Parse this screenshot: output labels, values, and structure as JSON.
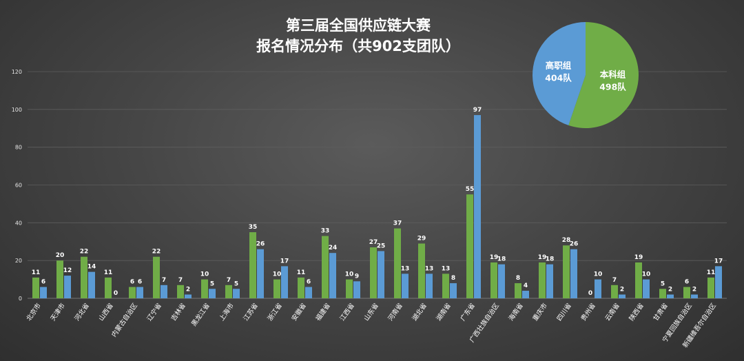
{
  "chart_data": [
    {
      "type": "bar",
      "title": [
        "第三届全国供应链大赛",
        "报名情况分布（共902支团队）"
      ],
      "categories": [
        "北京市",
        "天津市",
        "河北省",
        "山西省",
        "内蒙古自治区",
        "辽宁省",
        "吉林省",
        "黑龙江省",
        "上海市",
        "江苏省",
        "浙江省",
        "安徽省",
        "福建省",
        "江西省",
        "山东省",
        "河南省",
        "湖北省",
        "湖南省",
        "广东省",
        "广西壮族自治区",
        "海南省",
        "重庆市",
        "四川省",
        "贵州省",
        "云南省",
        "陕西省",
        "甘肃省",
        "宁夏回族自治区",
        "新疆维吾尔自治区"
      ],
      "series": [
        {
          "color": "#70ad47",
          "values": [
            11,
            20,
            22,
            11,
            6,
            22,
            7,
            10,
            7,
            35,
            10,
            11,
            33,
            10,
            27,
            37,
            29,
            13,
            55,
            19,
            8,
            19,
            28,
            0,
            7,
            19,
            5,
            6,
            11
          ]
        },
        {
          "color": "#5b9bd5",
          "values": [
            6,
            12,
            14,
            0,
            6,
            7,
            2,
            5,
            5,
            26,
            17,
            6,
            24,
            9,
            25,
            13,
            13,
            8,
            97,
            18,
            4,
            18,
            26,
            10,
            2,
            10,
            2,
            2,
            17
          ]
        }
      ],
      "ylim": [
        0,
        120
      ],
      "yticks": [
        "0",
        "20",
        "40",
        "60",
        "80",
        "100",
        "120"
      ],
      "grid": true,
      "legend": "none"
    },
    {
      "type": "pie",
      "slices": [
        {
          "label": "本科组",
          "value_label": "498队",
          "value": 498,
          "color": "#70ad47"
        },
        {
          "label": "高职组",
          "value_label": "404队",
          "value": 404,
          "color": "#5b9bd5"
        }
      ]
    }
  ]
}
